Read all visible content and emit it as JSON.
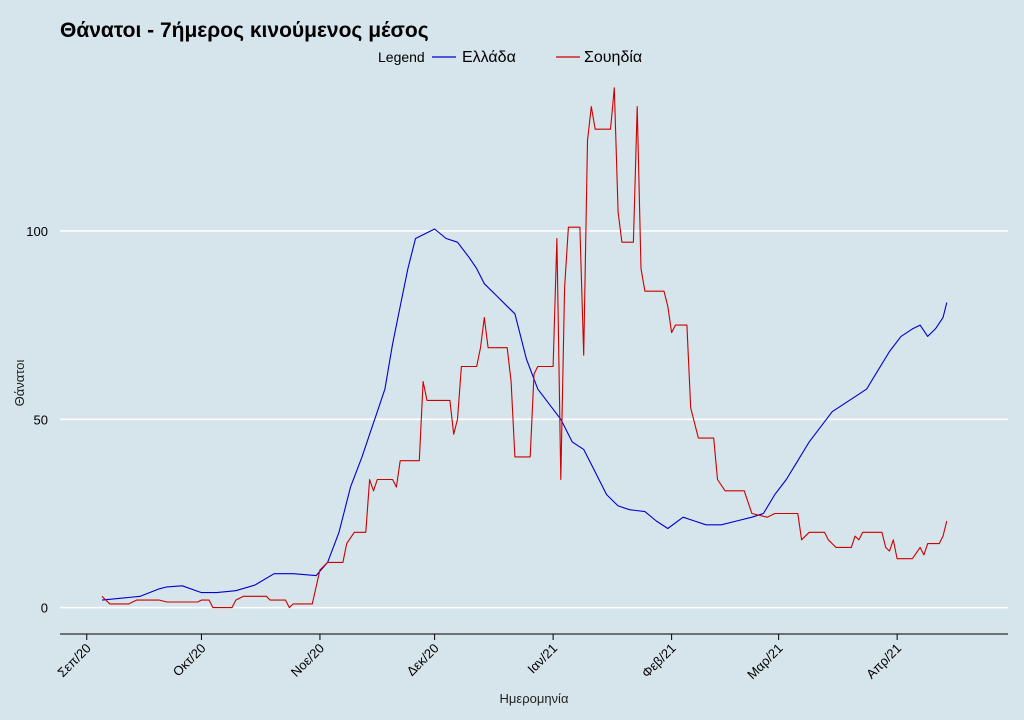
{
  "chart_data": {
    "type": "line",
    "title": "Θάνατοι - 7ήμερος κινούμενος μέσος",
    "xlabel": "Ημερομηνία",
    "ylabel": "Θάνατοι",
    "legend": {
      "title": "Legend",
      "position": "top"
    },
    "grid": true,
    "xlim": [
      "2020-08-25",
      "2021-04-30"
    ],
    "ylim": [
      -7,
      139
    ],
    "y_ticks": [
      0,
      50,
      100
    ],
    "x_ticks": [
      {
        "date": "2020-09-01",
        "label": "Σεπ/20"
      },
      {
        "date": "2020-10-01",
        "label": "Οκτ/20"
      },
      {
        "date": "2020-11-01",
        "label": "Νοε/20"
      },
      {
        "date": "2020-12-01",
        "label": "Δεκ/20"
      },
      {
        "date": "2021-01-01",
        "label": "Ιαν/21"
      },
      {
        "date": "2021-02-01",
        "label": "Φεβ/21"
      },
      {
        "date": "2021-03-01",
        "label": "Μαρ/21"
      },
      {
        "date": "2021-04-01",
        "label": "Απρ/21"
      }
    ],
    "series": [
      {
        "name": "Ελλάδα",
        "color": "#0000cc",
        "points": [
          [
            "2020-09-05",
            2
          ],
          [
            "2020-09-10",
            2.5
          ],
          [
            "2020-09-15",
            3
          ],
          [
            "2020-09-20",
            5
          ],
          [
            "2020-09-22",
            5.5
          ],
          [
            "2020-09-26",
            5.8
          ],
          [
            "2020-10-01",
            4
          ],
          [
            "2020-10-05",
            4
          ],
          [
            "2020-10-10",
            4.5
          ],
          [
            "2020-10-15",
            6
          ],
          [
            "2020-10-20",
            9
          ],
          [
            "2020-10-25",
            9
          ],
          [
            "2020-10-31",
            8.5
          ],
          [
            "2020-11-03",
            12
          ],
          [
            "2020-11-06",
            20
          ],
          [
            "2020-11-09",
            32
          ],
          [
            "2020-11-12",
            40
          ],
          [
            "2020-11-14",
            46
          ],
          [
            "2020-11-16",
            52
          ],
          [
            "2020-11-18",
            58
          ],
          [
            "2020-11-20",
            70
          ],
          [
            "2020-11-22",
            80
          ],
          [
            "2020-11-24",
            90
          ],
          [
            "2020-11-26",
            98
          ],
          [
            "2020-11-28",
            99
          ],
          [
            "2020-12-01",
            100.5
          ],
          [
            "2020-12-04",
            98
          ],
          [
            "2020-12-07",
            97
          ],
          [
            "2020-12-10",
            93
          ],
          [
            "2020-12-12",
            90
          ],
          [
            "2020-12-14",
            86
          ],
          [
            "2020-12-17",
            83
          ],
          [
            "2020-12-20",
            80
          ],
          [
            "2020-12-22",
            78
          ],
          [
            "2020-12-25",
            66
          ],
          [
            "2020-12-28",
            58
          ],
          [
            "2020-12-31",
            54
          ],
          [
            "2021-01-03",
            50
          ],
          [
            "2021-01-06",
            44
          ],
          [
            "2021-01-09",
            42
          ],
          [
            "2021-01-12",
            36
          ],
          [
            "2021-01-15",
            30
          ],
          [
            "2021-01-18",
            27
          ],
          [
            "2021-01-21",
            26
          ],
          [
            "2021-01-25",
            25.5
          ],
          [
            "2021-01-28",
            23
          ],
          [
            "2021-01-31",
            21
          ],
          [
            "2021-02-04",
            24
          ],
          [
            "2021-02-07",
            23
          ],
          [
            "2021-02-10",
            22
          ],
          [
            "2021-02-14",
            22
          ],
          [
            "2021-02-18",
            23
          ],
          [
            "2021-02-22",
            24
          ],
          [
            "2021-02-25",
            25
          ],
          [
            "2021-02-28",
            30
          ],
          [
            "2021-03-03",
            34
          ],
          [
            "2021-03-06",
            39
          ],
          [
            "2021-03-09",
            44
          ],
          [
            "2021-03-12",
            48
          ],
          [
            "2021-03-15",
            52
          ],
          [
            "2021-03-18",
            54
          ],
          [
            "2021-03-21",
            56
          ],
          [
            "2021-03-24",
            58
          ],
          [
            "2021-03-27",
            63
          ],
          [
            "2021-03-30",
            68
          ],
          [
            "2021-04-02",
            72
          ],
          [
            "2021-04-05",
            74
          ],
          [
            "2021-04-07",
            75
          ],
          [
            "2021-04-09",
            72
          ],
          [
            "2021-04-11",
            74
          ],
          [
            "2021-04-13",
            77
          ],
          [
            "2021-04-14",
            81
          ]
        ]
      },
      {
        "name": "Σουηδία",
        "color": "#cc0000",
        "points": [
          [
            "2020-09-05",
            3
          ],
          [
            "2020-09-07",
            1
          ],
          [
            "2020-09-12",
            1
          ],
          [
            "2020-09-14",
            2
          ],
          [
            "2020-09-20",
            2
          ],
          [
            "2020-09-22",
            1.5
          ],
          [
            "2020-09-30",
            1.5
          ],
          [
            "2020-10-01",
            2
          ],
          [
            "2020-10-03",
            2
          ],
          [
            "2020-10-04",
            0
          ],
          [
            "2020-10-09",
            0
          ],
          [
            "2020-10-10",
            2
          ],
          [
            "2020-10-12",
            3
          ],
          [
            "2020-10-18",
            3
          ],
          [
            "2020-10-19",
            2
          ],
          [
            "2020-10-23",
            2
          ],
          [
            "2020-10-24",
            0
          ],
          [
            "2020-10-25",
            1
          ],
          [
            "2020-10-30",
            1
          ],
          [
            "2020-11-01",
            10
          ],
          [
            "2020-11-03",
            12
          ],
          [
            "2020-11-07",
            12
          ],
          [
            "2020-11-08",
            17
          ],
          [
            "2020-11-10",
            20
          ],
          [
            "2020-11-13",
            20
          ],
          [
            "2020-11-14",
            34
          ],
          [
            "2020-11-15",
            31
          ],
          [
            "2020-11-16",
            34
          ],
          [
            "2020-11-20",
            34
          ],
          [
            "2020-11-21",
            32
          ],
          [
            "2020-11-22",
            39
          ],
          [
            "2020-11-27",
            39
          ],
          [
            "2020-11-28",
            60
          ],
          [
            "2020-11-29",
            55
          ],
          [
            "2020-12-05",
            55
          ],
          [
            "2020-12-06",
            46
          ],
          [
            "2020-12-07",
            50
          ],
          [
            "2020-12-08",
            64
          ],
          [
            "2020-12-12",
            64
          ],
          [
            "2020-12-13",
            69
          ],
          [
            "2020-12-14",
            77
          ],
          [
            "2020-12-15",
            69
          ],
          [
            "2020-12-20",
            69
          ],
          [
            "2020-12-21",
            60
          ],
          [
            "2020-12-22",
            40
          ],
          [
            "2020-12-26",
            40
          ],
          [
            "2020-12-27",
            62
          ],
          [
            "2020-12-28",
            64
          ],
          [
            "2021-01-01",
            64
          ],
          [
            "2021-01-02",
            98
          ],
          [
            "2021-01-03",
            34
          ],
          [
            "2021-01-04",
            85
          ],
          [
            "2021-01-05",
            101
          ],
          [
            "2021-01-08",
            101
          ],
          [
            "2021-01-09",
            67
          ],
          [
            "2021-01-10",
            124
          ],
          [
            "2021-01-11",
            133
          ],
          [
            "2021-01-12",
            127
          ],
          [
            "2021-01-16",
            127
          ],
          [
            "2021-01-17",
            138
          ],
          [
            "2021-01-18",
            105
          ],
          [
            "2021-01-19",
            97
          ],
          [
            "2021-01-22",
            97
          ],
          [
            "2021-01-23",
            133
          ],
          [
            "2021-01-24",
            90
          ],
          [
            "2021-01-25",
            84
          ],
          [
            "2021-01-30",
            84
          ],
          [
            "2021-01-31",
            80
          ],
          [
            "2021-02-01",
            73
          ],
          [
            "2021-02-02",
            75
          ],
          [
            "2021-02-05",
            75
          ],
          [
            "2021-02-06",
            53
          ],
          [
            "2021-02-08",
            45
          ],
          [
            "2021-02-12",
            45
          ],
          [
            "2021-02-13",
            34
          ],
          [
            "2021-02-15",
            31
          ],
          [
            "2021-02-20",
            31
          ],
          [
            "2021-02-22",
            25
          ],
          [
            "2021-02-26",
            24
          ],
          [
            "2021-02-28",
            25
          ],
          [
            "2021-03-06",
            25
          ],
          [
            "2021-03-07",
            18
          ],
          [
            "2021-03-09",
            20
          ],
          [
            "2021-03-13",
            20
          ],
          [
            "2021-03-14",
            18
          ],
          [
            "2021-03-16",
            16
          ],
          [
            "2021-03-20",
            16
          ],
          [
            "2021-03-21",
            19
          ],
          [
            "2021-03-22",
            18
          ],
          [
            "2021-03-23",
            20
          ],
          [
            "2021-03-28",
            20
          ],
          [
            "2021-03-29",
            16
          ],
          [
            "2021-03-30",
            15
          ],
          [
            "2021-03-31",
            18
          ],
          [
            "2021-04-01",
            13
          ],
          [
            "2021-04-05",
            13
          ],
          [
            "2021-04-07",
            16
          ],
          [
            "2021-04-08",
            14
          ],
          [
            "2021-04-09",
            17
          ],
          [
            "2021-04-12",
            17
          ],
          [
            "2021-04-13",
            19
          ],
          [
            "2021-04-14",
            23
          ]
        ]
      }
    ]
  }
}
